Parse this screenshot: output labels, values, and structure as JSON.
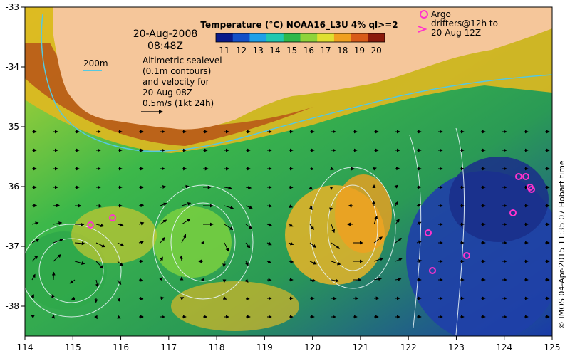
{
  "map": {
    "lon_range": [
      114,
      125
    ],
    "lat_range": [
      -38.5,
      -33
    ],
    "x_ticks": [
      "114",
      "115",
      "116",
      "117",
      "118",
      "119",
      "120",
      "121",
      "122",
      "123",
      "124",
      "125"
    ],
    "y_ticks": [
      "-33",
      "-34",
      "-35",
      "-36",
      "-37",
      "-38"
    ]
  },
  "header": {
    "date": "20-Aug-2008",
    "time": "08:48Z",
    "colorbar_title": "Temperature (°C) NOAA16_L3U 4% ql>=2",
    "colorbar_ticks": [
      "11",
      "12",
      "13",
      "14",
      "15",
      "16",
      "17",
      "18",
      "19",
      "20"
    ],
    "colorbar_colors": [
      "#0a1a8a",
      "#1550c8",
      "#1fa0e8",
      "#22c8b0",
      "#2fb84a",
      "#8ed43a",
      "#e0e030",
      "#f0a020",
      "#d85a18",
      "#8a1a0c"
    ]
  },
  "legend": {
    "scale_label": "200m",
    "altimetric_lines": [
      "Altimetric sealevel",
      "(0.1m contours)",
      "and velocity for",
      "20-Aug 08Z",
      "0.5m/s (1kt 24h)"
    ],
    "argo_lines": [
      "Argo",
      "drifters@12h to",
      "20-Aug 12Z"
    ]
  },
  "credit": "© IMOS 04-Apr-2015 11:35:07 Hobart time",
  "colors": {
    "land": "#f5c69a",
    "argo": "#ff33cc",
    "contour": "#e8f4f8",
    "isobath": "#55c8e0"
  }
}
